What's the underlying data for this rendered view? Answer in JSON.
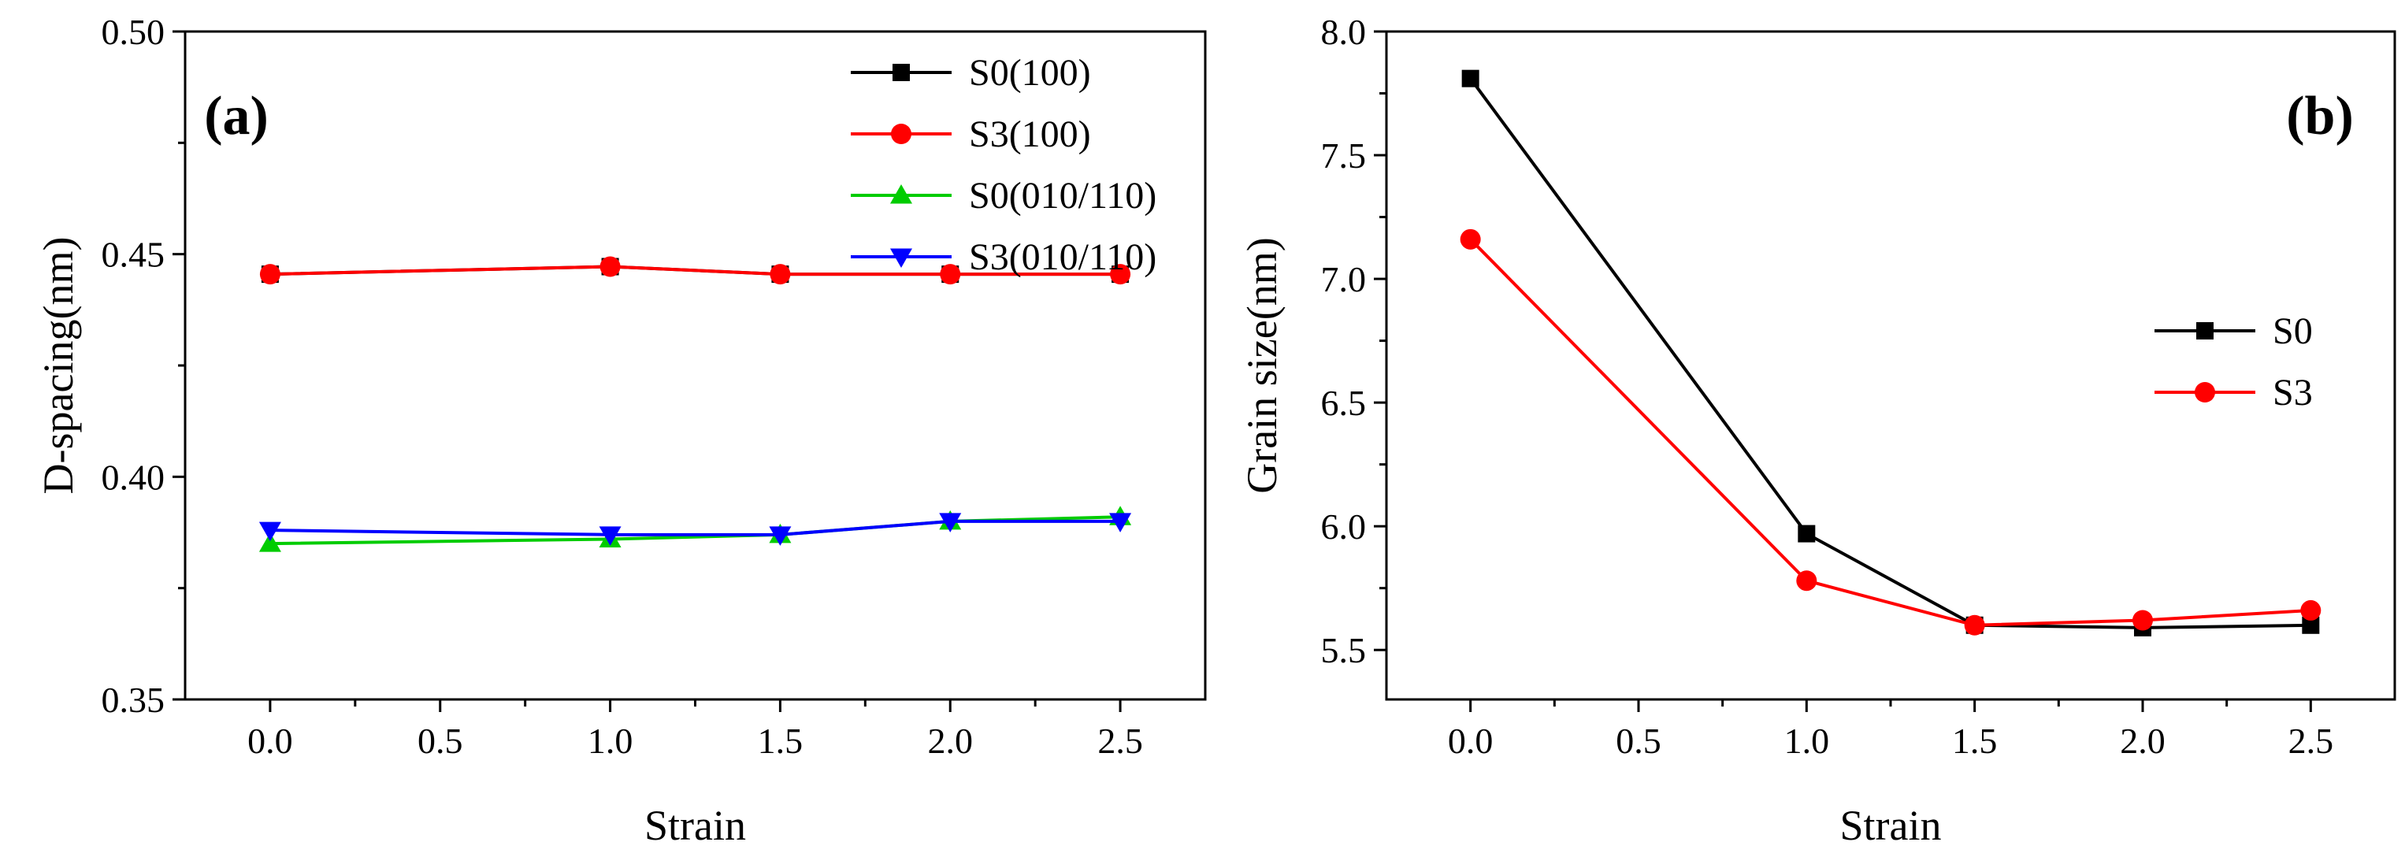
{
  "chart_data": [
    {
      "type": "line",
      "panel_label": "(a)",
      "title": "",
      "xlabel": "Strain",
      "ylabel": "D-spacing(nm)",
      "xlim": [
        -0.25,
        2.75
      ],
      "ylim": [
        0.35,
        0.5
      ],
      "xticks": [
        0.0,
        0.5,
        1.0,
        1.5,
        2.0,
        2.5
      ],
      "xtick_labels": [
        "0.0",
        "0.5",
        "1.0",
        "1.5",
        "2.0",
        "2.5"
      ],
      "yticks": [
        0.35,
        0.4,
        0.45,
        0.5
      ],
      "ytick_labels": [
        "0.35",
        "0.40",
        "0.45",
        "0.50"
      ],
      "legend_position": "top-right",
      "x": [
        0.0,
        1.0,
        1.5,
        2.0,
        2.5
      ],
      "series": [
        {
          "name": "S0(100)",
          "color": "#000000",
          "marker": "square",
          "values": [
            0.4455,
            0.4472,
            0.4455,
            0.4455,
            0.4455
          ]
        },
        {
          "name": "S3(100)",
          "color": "#ff0000",
          "marker": "circle",
          "values": [
            0.4455,
            0.4472,
            0.4455,
            0.4455,
            0.4455
          ]
        },
        {
          "name": "S0(010/110)",
          "color": "#00cc00",
          "marker": "triangle-up",
          "values": [
            0.385,
            0.386,
            0.387,
            0.39,
            0.391
          ]
        },
        {
          "name": "S3(010/110)",
          "color": "#0000ff",
          "marker": "triangle-down",
          "values": [
            0.388,
            0.387,
            0.387,
            0.39,
            0.39
          ]
        }
      ]
    },
    {
      "type": "line",
      "panel_label": "(b)",
      "title": "",
      "xlabel": "Strain",
      "ylabel": "Grain size(nm)",
      "xlim": [
        -0.25,
        2.75
      ],
      "ylim": [
        5.3,
        8.0
      ],
      "xticks": [
        0.0,
        0.5,
        1.0,
        1.5,
        2.0,
        2.5
      ],
      "xtick_labels": [
        "0.0",
        "0.5",
        "1.0",
        "1.5",
        "2.0",
        "2.5"
      ],
      "yticks": [
        5.5,
        6.0,
        6.5,
        7.0,
        7.5,
        8.0
      ],
      "ytick_labels": [
        "5.5",
        "6.0",
        "6.5",
        "7.0",
        "7.5",
        "8.0"
      ],
      "legend_position": "center-right",
      "x": [
        0.0,
        1.0,
        1.5,
        2.0,
        2.5
      ],
      "series": [
        {
          "name": "S0",
          "color": "#000000",
          "marker": "square",
          "values": [
            7.81,
            5.97,
            5.6,
            5.59,
            5.6
          ]
        },
        {
          "name": "S3",
          "color": "#ff0000",
          "marker": "circle",
          "values": [
            7.16,
            5.78,
            5.6,
            5.62,
            5.66
          ]
        }
      ]
    }
  ]
}
